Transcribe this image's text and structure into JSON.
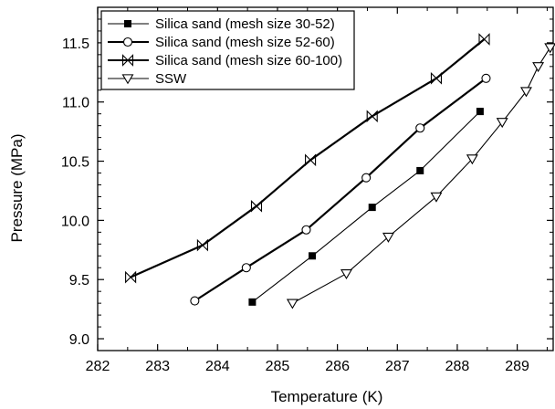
{
  "chart_data": {
    "type": "line",
    "xlabel": "Temperature (K)",
    "ylabel": "Pressure (MPa)",
    "xlim": [
      282,
      289.6
    ],
    "ylim": [
      8.9,
      11.8
    ],
    "xticks": [
      "282",
      "283",
      "284",
      "285",
      "286",
      "287",
      "288",
      "289"
    ],
    "yticks": [
      "9.0",
      "9.5",
      "10.0",
      "10.5",
      "11.0",
      "11.5"
    ],
    "grid": false,
    "legend_position": "top-left",
    "series": [
      {
        "name": "Silica sand (mesh size 30-52)",
        "marker": "filled-square",
        "line_width": "thin",
        "x": [
          284.58,
          285.58,
          286.58,
          287.38,
          288.38
        ],
        "y": [
          9.31,
          9.7,
          10.11,
          10.42,
          10.92
        ]
      },
      {
        "name": "Silica sand (mesh size 52-60)",
        "marker": "open-circle",
        "line_width": "thick",
        "x": [
          283.62,
          284.48,
          285.48,
          286.48,
          287.38,
          288.48
        ],
        "y": [
          9.32,
          9.6,
          9.92,
          10.36,
          10.78,
          11.2
        ]
      },
      {
        "name": "Silica sand (mesh size 60-100)",
        "marker": "bowtie-x",
        "line_width": "thick",
        "x": [
          282.55,
          283.75,
          284.65,
          285.55,
          286.58,
          287.65,
          288.45
        ],
        "y": [
          9.52,
          9.79,
          10.12,
          10.51,
          10.88,
          11.2,
          11.53
        ]
      },
      {
        "name": "SSW",
        "marker": "open-triangle-down",
        "line_width": "thin",
        "x": [
          285.25,
          286.15,
          286.85,
          287.65,
          288.25,
          288.75,
          289.15,
          289.35,
          289.55
        ],
        "y": [
          9.3,
          9.55,
          9.86,
          10.2,
          10.52,
          10.83,
          11.09,
          11.3,
          11.46
        ]
      }
    ]
  }
}
